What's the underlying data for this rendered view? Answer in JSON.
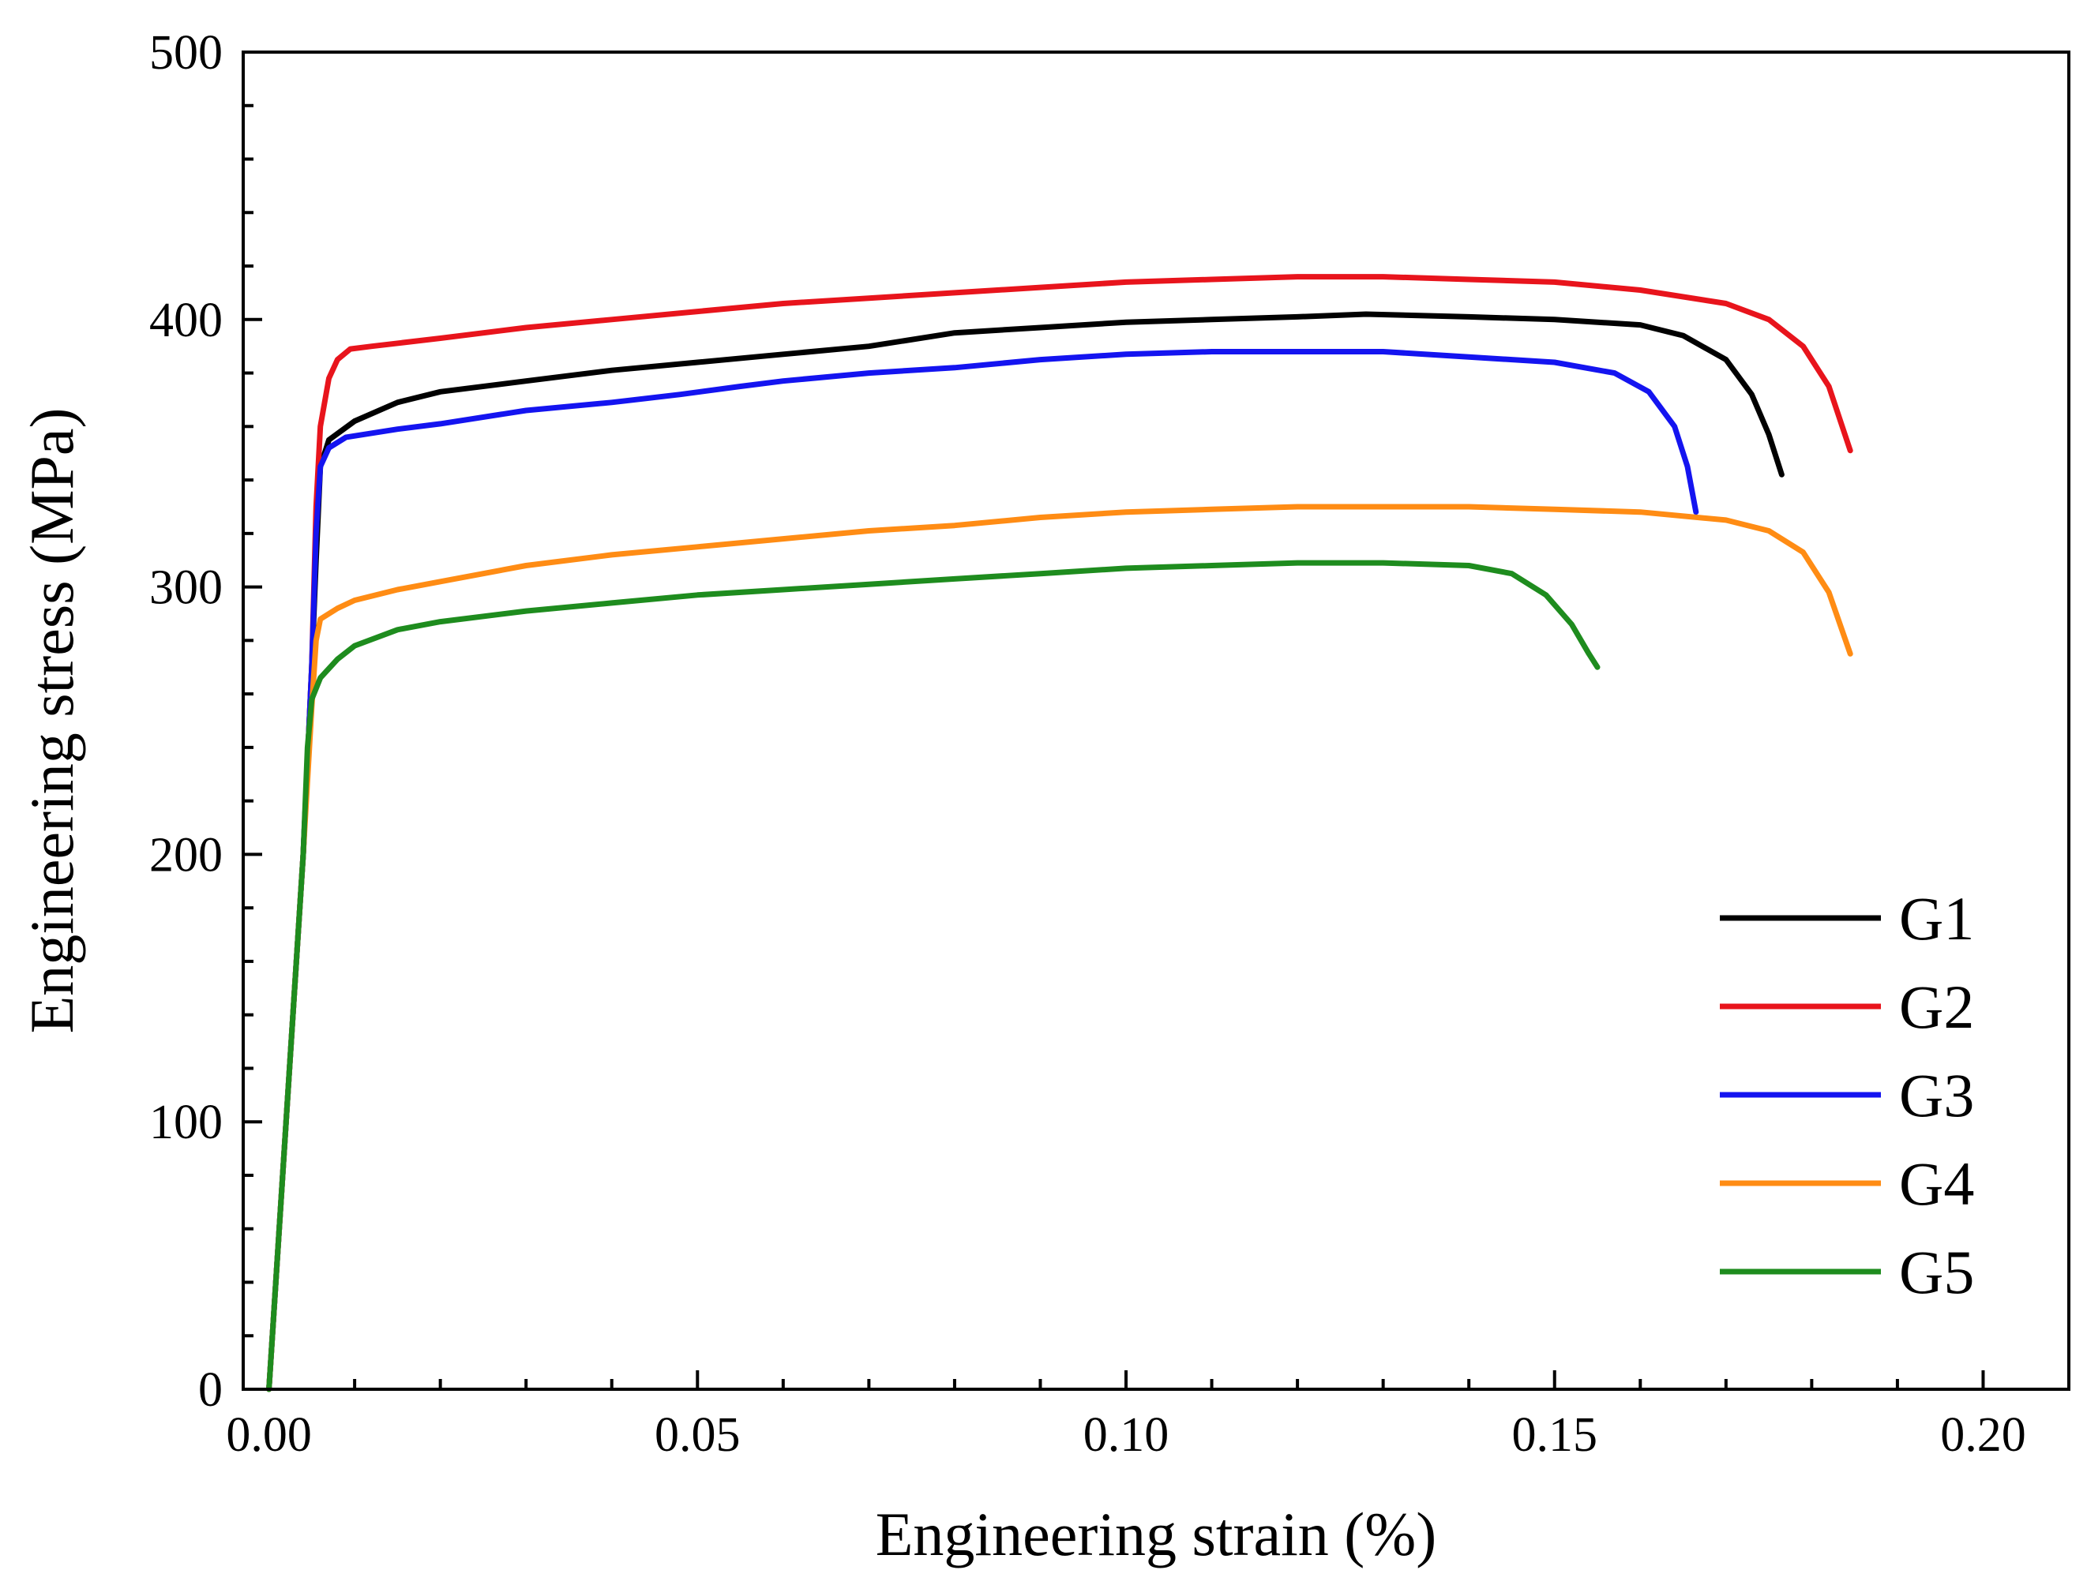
{
  "chart_data": {
    "type": "line",
    "title": "",
    "xlabel": "Engineering strain (%)",
    "ylabel": "Engineering stress (MPa)",
    "xlim": [
      -0.003,
      0.21
    ],
    "ylim": [
      0,
      500
    ],
    "grid": false,
    "legend_position": "bottom-right",
    "x_ticks": [
      {
        "value": 0.0,
        "label": "0.00"
      },
      {
        "value": 0.05,
        "label": "0.05"
      },
      {
        "value": 0.1,
        "label": "0.10"
      },
      {
        "value": 0.15,
        "label": "0.15"
      },
      {
        "value": 0.2,
        "label": "0.20"
      }
    ],
    "x_minor_step": 0.01,
    "y_ticks": [
      {
        "value": 0,
        "label": "0"
      },
      {
        "value": 100,
        "label": "100"
      },
      {
        "value": 200,
        "label": "200"
      },
      {
        "value": 300,
        "label": "300"
      },
      {
        "value": 400,
        "label": "400"
      },
      {
        "value": 500,
        "label": "500"
      }
    ],
    "y_minor_step": 20,
    "series": [
      {
        "name": "G1",
        "color": "#000000",
        "points": [
          [
            0.0,
            0
          ],
          [
            0.002,
            100
          ],
          [
            0.004,
            200
          ],
          [
            0.005,
            270
          ],
          [
            0.0055,
            310
          ],
          [
            0.006,
            345
          ],
          [
            0.007,
            355
          ],
          [
            0.01,
            362
          ],
          [
            0.015,
            369
          ],
          [
            0.02,
            373
          ],
          [
            0.03,
            377
          ],
          [
            0.04,
            381
          ],
          [
            0.05,
            384
          ],
          [
            0.06,
            387
          ],
          [
            0.07,
            390
          ],
          [
            0.08,
            395
          ],
          [
            0.09,
            397
          ],
          [
            0.1,
            399
          ],
          [
            0.11,
            400
          ],
          [
            0.12,
            401
          ],
          [
            0.128,
            402
          ],
          [
            0.14,
            401
          ],
          [
            0.15,
            400
          ],
          [
            0.16,
            398
          ],
          [
            0.165,
            394
          ],
          [
            0.17,
            385
          ],
          [
            0.173,
            372
          ],
          [
            0.175,
            357
          ],
          [
            0.1765,
            342
          ]
        ]
      },
      {
        "name": "G2",
        "color": "#e8141c",
        "points": [
          [
            0.0,
            0
          ],
          [
            0.002,
            100
          ],
          [
            0.004,
            200
          ],
          [
            0.005,
            270
          ],
          [
            0.0055,
            330
          ],
          [
            0.006,
            360
          ],
          [
            0.007,
            378
          ],
          [
            0.008,
            385
          ],
          [
            0.0095,
            389
          ],
          [
            0.012,
            390
          ],
          [
            0.02,
            393
          ],
          [
            0.03,
            397
          ],
          [
            0.04,
            400
          ],
          [
            0.05,
            403
          ],
          [
            0.06,
            406
          ],
          [
            0.07,
            408
          ],
          [
            0.08,
            410
          ],
          [
            0.09,
            412
          ],
          [
            0.1,
            414
          ],
          [
            0.11,
            415
          ],
          [
            0.12,
            416
          ],
          [
            0.13,
            416
          ],
          [
            0.14,
            415
          ],
          [
            0.15,
            414
          ],
          [
            0.16,
            411
          ],
          [
            0.17,
            406
          ],
          [
            0.175,
            400
          ],
          [
            0.179,
            390
          ],
          [
            0.182,
            375
          ],
          [
            0.1845,
            351
          ]
        ]
      },
      {
        "name": "G3",
        "color": "#1414f0",
        "points": [
          [
            0.0,
            0
          ],
          [
            0.002,
            100
          ],
          [
            0.004,
            200
          ],
          [
            0.005,
            270
          ],
          [
            0.0055,
            320
          ],
          [
            0.006,
            345
          ],
          [
            0.007,
            352
          ],
          [
            0.009,
            356
          ],
          [
            0.015,
            359
          ],
          [
            0.02,
            361
          ],
          [
            0.03,
            366
          ],
          [
            0.04,
            369
          ],
          [
            0.048,
            372
          ],
          [
            0.055,
            375
          ],
          [
            0.06,
            377
          ],
          [
            0.07,
            380
          ],
          [
            0.08,
            382
          ],
          [
            0.09,
            385
          ],
          [
            0.1,
            387
          ],
          [
            0.11,
            388
          ],
          [
            0.12,
            388
          ],
          [
            0.13,
            388
          ],
          [
            0.14,
            386
          ],
          [
            0.15,
            384
          ],
          [
            0.157,
            380
          ],
          [
            0.161,
            373
          ],
          [
            0.164,
            360
          ],
          [
            0.1655,
            345
          ],
          [
            0.1665,
            328
          ]
        ]
      },
      {
        "name": "G4",
        "color": "#ff8c14",
        "points": [
          [
            0.0,
            0
          ],
          [
            0.002,
            100
          ],
          [
            0.004,
            200
          ],
          [
            0.005,
            255
          ],
          [
            0.0055,
            280
          ],
          [
            0.006,
            288
          ],
          [
            0.008,
            292
          ],
          [
            0.01,
            295
          ],
          [
            0.015,
            299
          ],
          [
            0.02,
            302
          ],
          [
            0.03,
            308
          ],
          [
            0.04,
            312
          ],
          [
            0.05,
            315
          ],
          [
            0.06,
            318
          ],
          [
            0.07,
            321
          ],
          [
            0.08,
            323
          ],
          [
            0.09,
            326
          ],
          [
            0.1,
            328
          ],
          [
            0.11,
            329
          ],
          [
            0.12,
            330
          ],
          [
            0.13,
            330
          ],
          [
            0.14,
            330
          ],
          [
            0.15,
            329
          ],
          [
            0.16,
            328
          ],
          [
            0.17,
            325
          ],
          [
            0.175,
            321
          ],
          [
            0.179,
            313
          ],
          [
            0.182,
            298
          ],
          [
            0.1845,
            275
          ]
        ]
      },
      {
        "name": "G5",
        "color": "#1e8c1e",
        "points": [
          [
            0.0,
            0
          ],
          [
            0.002,
            100
          ],
          [
            0.004,
            200
          ],
          [
            0.0045,
            240
          ],
          [
            0.005,
            258
          ],
          [
            0.006,
            266
          ],
          [
            0.008,
            273
          ],
          [
            0.01,
            278
          ],
          [
            0.015,
            284
          ],
          [
            0.02,
            287
          ],
          [
            0.03,
            291
          ],
          [
            0.04,
            294
          ],
          [
            0.05,
            297
          ],
          [
            0.06,
            299
          ],
          [
            0.07,
            301
          ],
          [
            0.08,
            303
          ],
          [
            0.09,
            305
          ],
          [
            0.1,
            307
          ],
          [
            0.11,
            308
          ],
          [
            0.12,
            309
          ],
          [
            0.13,
            309
          ],
          [
            0.14,
            308
          ],
          [
            0.145,
            305
          ],
          [
            0.149,
            297
          ],
          [
            0.152,
            286
          ],
          [
            0.154,
            275
          ],
          [
            0.155,
            270
          ]
        ]
      }
    ]
  }
}
